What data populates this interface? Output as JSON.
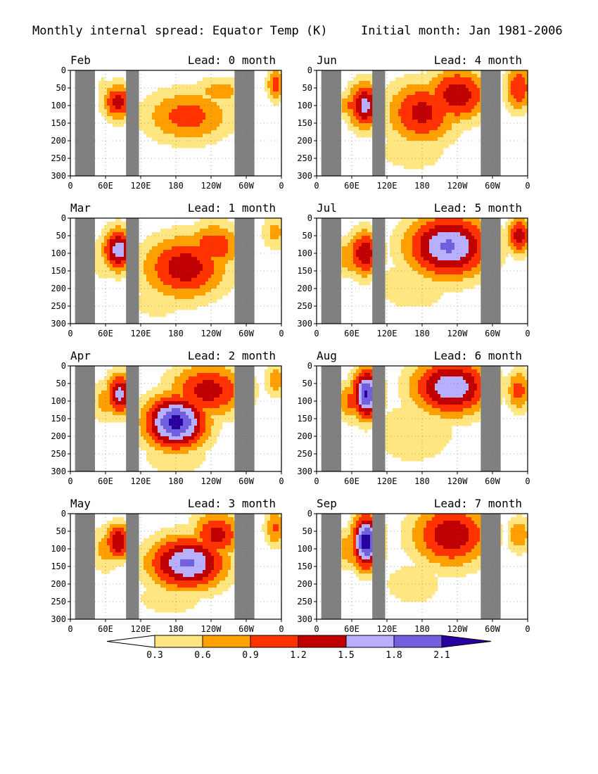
{
  "header": {
    "title": "Monthly internal spread: Equator Temp (K)",
    "initial": "Initial month: Jan 1981-2006"
  },
  "colors": {
    "land_mask": "#808080",
    "levels_fill": [
      "#ffffff",
      "#ffe680",
      "#ffa000",
      "#ff3200",
      "#c00000",
      "#b8b0ff",
      "#7060e0",
      "#2800a0"
    ]
  },
  "chart_data": {
    "type": "heatmap",
    "variable": "Equator Temp (K)",
    "xticks": [
      "0",
      "60E",
      "120E",
      "180",
      "120W",
      "60W",
      "0"
    ],
    "xrange_deg_east": [
      0,
      360
    ],
    "yticks": [
      "0",
      "50",
      "100",
      "150",
      "200",
      "250",
      "300"
    ],
    "yrange_m": [
      0,
      300
    ],
    "y_reversed": true,
    "grid": "dotted",
    "land_mask_lon_ranges": [
      [
        8,
        42
      ],
      [
        95,
        117
      ],
      [
        280,
        314
      ]
    ],
    "colorbar": {
      "levels": [
        "0.3",
        "0.6",
        "0.9",
        "1.2",
        "1.5",
        "1.8",
        "2.1"
      ],
      "values": [
        0.3,
        0.6,
        0.9,
        1.2,
        1.5,
        1.8,
        2.1
      ]
    },
    "panels": [
      {
        "month": "Feb",
        "lead": "Lead: 0 month",
        "lead_months": 0,
        "blobs": [
          {
            "lon": 200,
            "depth": 130,
            "rx": 80,
            "ry": 80,
            "peak": 1.05
          },
          {
            "lon": 255,
            "depth": 60,
            "rx": 50,
            "ry": 45,
            "peak": 0.75
          },
          {
            "lon": 82,
            "depth": 90,
            "rx": 28,
            "ry": 55,
            "peak": 1.35
          },
          {
            "lon": 350,
            "depth": 40,
            "rx": 16,
            "ry": 50,
            "peak": 1.05
          },
          {
            "lon": 55,
            "depth": 70,
            "rx": 10,
            "ry": 70,
            "peak": 0.55
          }
        ]
      },
      {
        "month": "Jun",
        "lead": "Lead: 4 month",
        "lead_months": 4,
        "blobs": [
          {
            "lon": 180,
            "depth": 120,
            "rx": 65,
            "ry": 95,
            "peak": 1.3
          },
          {
            "lon": 240,
            "depth": 70,
            "rx": 55,
            "ry": 80,
            "peak": 1.45
          },
          {
            "lon": 82,
            "depth": 100,
            "rx": 30,
            "ry": 70,
            "peak": 1.6
          },
          {
            "lon": 60,
            "depth": 100,
            "rx": 25,
            "ry": 40,
            "peak": 1.0
          },
          {
            "lon": 345,
            "depth": 50,
            "rx": 25,
            "ry": 70,
            "peak": 1.2
          },
          {
            "lon": 165,
            "depth": 230,
            "rx": 80,
            "ry": 75,
            "peak": 0.45
          }
        ]
      },
      {
        "month": "Mar",
        "lead": "Lead: 1 month",
        "lead_months": 1,
        "blobs": [
          {
            "lon": 195,
            "depth": 140,
            "rx": 75,
            "ry": 95,
            "peak": 1.4
          },
          {
            "lon": 245,
            "depth": 80,
            "rx": 50,
            "ry": 70,
            "peak": 1.15
          },
          {
            "lon": 82,
            "depth": 90,
            "rx": 28,
            "ry": 65,
            "peak": 1.7
          },
          {
            "lon": 60,
            "depth": 110,
            "rx": 30,
            "ry": 80,
            "peak": 0.55
          },
          {
            "lon": 350,
            "depth": 40,
            "rx": 25,
            "ry": 55,
            "peak": 0.7
          },
          {
            "lon": 150,
            "depth": 240,
            "rx": 60,
            "ry": 60,
            "peak": 0.45
          }
        ]
      },
      {
        "month": "Jul",
        "lead": "Lead: 5 month",
        "lead_months": 5,
        "blobs": [
          {
            "lon": 225,
            "depth": 80,
            "rx": 75,
            "ry": 95,
            "peak": 1.85
          },
          {
            "lon": 82,
            "depth": 100,
            "rx": 30,
            "ry": 70,
            "peak": 1.45
          },
          {
            "lon": 60,
            "depth": 110,
            "rx": 30,
            "ry": 60,
            "peak": 0.9
          },
          {
            "lon": 345,
            "depth": 50,
            "rx": 22,
            "ry": 55,
            "peak": 1.4
          },
          {
            "lon": 165,
            "depth": 190,
            "rx": 80,
            "ry": 90,
            "peak": 0.5
          }
        ]
      },
      {
        "month": "Apr",
        "lead": "Lead: 2 month",
        "lead_months": 2,
        "blobs": [
          {
            "lon": 180,
            "depth": 160,
            "rx": 55,
            "ry": 80,
            "peak": 2.2
          },
          {
            "lon": 235,
            "depth": 70,
            "rx": 70,
            "ry": 80,
            "peak": 1.35
          },
          {
            "lon": 85,
            "depth": 80,
            "rx": 25,
            "ry": 65,
            "peak": 1.6
          },
          {
            "lon": 60,
            "depth": 100,
            "rx": 30,
            "ry": 70,
            "peak": 0.7
          },
          {
            "lon": 350,
            "depth": 40,
            "rx": 20,
            "ry": 50,
            "peak": 0.8
          },
          {
            "lon": 180,
            "depth": 260,
            "rx": 70,
            "ry": 60,
            "peak": 0.5
          }
        ]
      },
      {
        "month": "Aug",
        "lead": "Lead: 6 month",
        "lead_months": 6,
        "blobs": [
          {
            "lon": 230,
            "depth": 60,
            "rx": 70,
            "ry": 85,
            "peak": 1.75
          },
          {
            "lon": 85,
            "depth": 80,
            "rx": 25,
            "ry": 75,
            "peak": 2.15
          },
          {
            "lon": 60,
            "depth": 100,
            "rx": 30,
            "ry": 60,
            "peak": 1.0
          },
          {
            "lon": 345,
            "depth": 70,
            "rx": 22,
            "ry": 65,
            "peak": 1.05
          },
          {
            "lon": 165,
            "depth": 190,
            "rx": 90,
            "ry": 110,
            "peak": 0.5
          }
        ]
      },
      {
        "month": "May",
        "lead": "Lead: 3 month",
        "lead_months": 3,
        "blobs": [
          {
            "lon": 200,
            "depth": 140,
            "rx": 70,
            "ry": 80,
            "peak": 1.85
          },
          {
            "lon": 250,
            "depth": 60,
            "rx": 45,
            "ry": 70,
            "peak": 1.3
          },
          {
            "lon": 82,
            "depth": 80,
            "rx": 25,
            "ry": 55,
            "peak": 1.5
          },
          {
            "lon": 60,
            "depth": 100,
            "rx": 30,
            "ry": 70,
            "peak": 0.75
          },
          {
            "lon": 350,
            "depth": 40,
            "rx": 20,
            "ry": 60,
            "peak": 0.95
          },
          {
            "lon": 170,
            "depth": 240,
            "rx": 80,
            "ry": 65,
            "peak": 0.45
          }
        ]
      },
      {
        "month": "Sep",
        "lead": "Lead: 7 month",
        "lead_months": 7,
        "blobs": [
          {
            "lon": 230,
            "depth": 60,
            "rx": 70,
            "ry": 95,
            "peak": 1.45
          },
          {
            "lon": 85,
            "depth": 80,
            "rx": 25,
            "ry": 80,
            "peak": 2.3
          },
          {
            "lon": 60,
            "depth": 100,
            "rx": 30,
            "ry": 60,
            "peak": 0.9
          },
          {
            "lon": 345,
            "depth": 60,
            "rx": 20,
            "ry": 55,
            "peak": 0.9
          },
          {
            "lon": 165,
            "depth": 200,
            "rx": 80,
            "ry": 100,
            "peak": 0.4
          }
        ]
      }
    ]
  }
}
